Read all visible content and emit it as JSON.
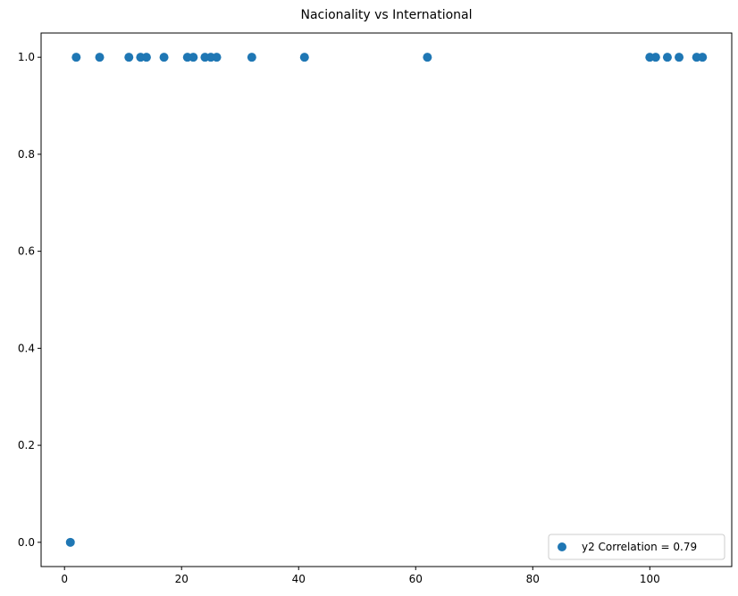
{
  "chart_data": {
    "type": "scatter",
    "title": "Nacionality vs International",
    "xlabel": "",
    "ylabel": "",
    "xlim": [
      -4,
      114
    ],
    "ylim": [
      -0.05,
      1.05
    ],
    "x_ticks": [
      0,
      20,
      40,
      60,
      80,
      100
    ],
    "y_ticks": [
      0.0,
      0.2,
      0.4,
      0.6,
      0.8,
      1.0
    ],
    "x_tick_labels": [
      "0",
      "20",
      "40",
      "60",
      "80",
      "100"
    ],
    "y_tick_labels": [
      "0.0",
      "0.2",
      "0.4",
      "0.6",
      "0.8",
      "1.0"
    ],
    "grid": false,
    "legend_position": "bottom-right",
    "series": [
      {
        "name": "y2 Correlation = 0.79",
        "color": "#1f77b4",
        "points": [
          {
            "x": 1,
            "y": 0
          },
          {
            "x": 2,
            "y": 1
          },
          {
            "x": 6,
            "y": 1
          },
          {
            "x": 11,
            "y": 1
          },
          {
            "x": 13,
            "y": 1
          },
          {
            "x": 14,
            "y": 1
          },
          {
            "x": 17,
            "y": 1
          },
          {
            "x": 21,
            "y": 1
          },
          {
            "x": 22,
            "y": 1
          },
          {
            "x": 24,
            "y": 1
          },
          {
            "x": 25,
            "y": 1
          },
          {
            "x": 26,
            "y": 1
          },
          {
            "x": 32,
            "y": 1
          },
          {
            "x": 41,
            "y": 1
          },
          {
            "x": 62,
            "y": 1
          },
          {
            "x": 100,
            "y": 1
          },
          {
            "x": 101,
            "y": 1
          },
          {
            "x": 103,
            "y": 1
          },
          {
            "x": 105,
            "y": 1
          },
          {
            "x": 108,
            "y": 1
          },
          {
            "x": 109,
            "y": 1
          }
        ]
      }
    ]
  }
}
